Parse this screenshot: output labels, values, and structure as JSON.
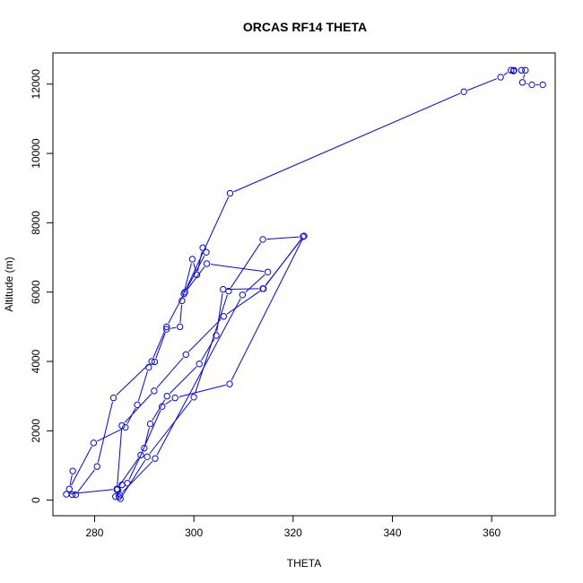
{
  "chart_data": {
    "type": "line",
    "title": "ORCAS RF14 THETA",
    "xlabel": "THETA",
    "ylabel": "Altitude (m)",
    "xlim": [
      271.6,
      372.8
    ],
    "ylim": [
      -450,
      12900
    ],
    "xticks": [
      280,
      300,
      320,
      340,
      360
    ],
    "yticks": [
      0,
      2000,
      4000,
      6000,
      8000,
      10000,
      12000
    ],
    "grid": false,
    "legend": "none",
    "style": "points connected by lines, open circle markers",
    "color": "#0000ff",
    "series": [
      {
        "x": [
          275.6,
          274.9,
          279.8,
          286.2,
          288.6,
          290.9,
          292.1,
          294.5,
          297.2,
          297.6,
          299.7,
          300.6,
          301.8,
          302.5,
          298.2,
          294.5,
          291.5,
          283.8,
          280.5,
          276.2,
          275.5,
          274.3,
          284.5,
          289.3,
          293.6,
          296.2,
          307.2,
          322.2,
          313.9,
          305.9,
          304.5,
          301.1,
          294.6,
          291.2,
          290.0,
          286.6,
          285.5,
          284.9,
          284.2,
          284.6,
          285.2,
          290.6,
          300.0,
          307.0,
          313.9,
          322.0,
          314.0,
          306.0,
          298.4,
          292.0,
          285.5,
          284.5,
          285.1,
          292.2,
          309.8,
          314.9,
          302.6,
          298.0,
          307.3,
          354.4,
          361.8,
          363.9,
          364.4,
          364.5,
          366.0,
          366.8,
          366.2,
          368.1,
          370.3
        ],
        "y": [
          840,
          320,
          1650,
          2100,
          2750,
          3830,
          3990,
          4930,
          5000,
          5750,
          6950,
          6500,
          7280,
          7150,
          6000,
          5000,
          4000,
          2950,
          970,
          160,
          160,
          170,
          320,
          1300,
          2700,
          2950,
          3350,
          7620,
          6100,
          6080,
          4750,
          3930,
          3000,
          2200,
          1500,
          490,
          440,
          100,
          100,
          310,
          40,
          1250,
          2970,
          6030,
          7520,
          7600,
          6100,
          5300,
          4200,
          3150,
          2150,
          300,
          150,
          1200,
          5920,
          6580,
          6820,
          5950,
          8850,
          11780,
          12200,
          12400,
          12380,
          12400,
          12400,
          12400,
          12050,
          11980,
          11980
        ]
      }
    ]
  }
}
